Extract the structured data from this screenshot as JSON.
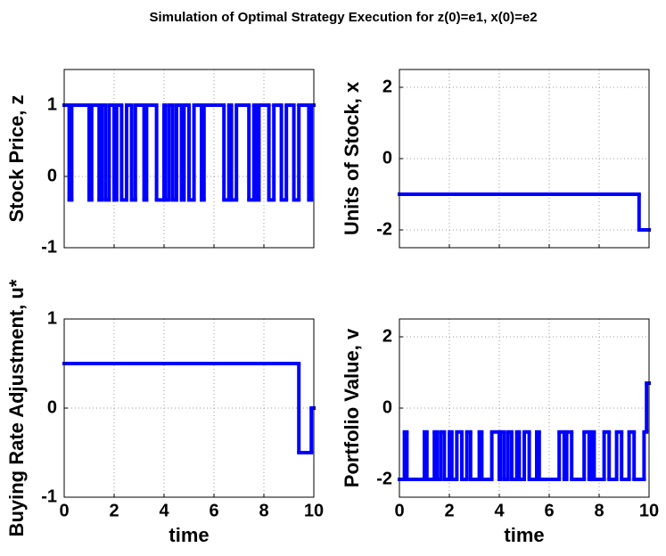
{
  "title": "Simulation of Optimal Strategy Execution for z(0)=e1, x(0)=e2",
  "chart_data": [
    {
      "type": "line",
      "drawstyle": "steps-post",
      "ylabel": "Stock Price, z",
      "xtick_labels_shown": false,
      "xlim": [
        0,
        10
      ],
      "xticks": [
        0,
        2,
        4,
        6,
        8,
        10
      ],
      "ylim": [
        -1,
        1.5
      ],
      "yticks": [
        -1,
        0,
        1
      ],
      "grid": true,
      "series": [
        {
          "color": "#0000ff",
          "x": [
            0,
            0.2,
            0.3,
            1.0,
            1.1,
            1.4,
            1.5,
            1.65,
            1.8,
            2.0,
            2.1,
            2.3,
            2.5,
            2.7,
            2.85,
            3.2,
            3.3,
            3.7,
            4.0,
            4.05,
            4.2,
            4.35,
            4.5,
            4.7,
            4.8,
            5.0,
            5.2,
            5.5,
            5.6,
            6.4,
            6.6,
            6.7,
            6.9,
            7.4,
            7.6,
            7.7,
            7.8,
            8.2,
            8.4,
            8.7,
            8.9,
            9.2,
            9.4,
            9.8,
            9.9
          ],
          "values": [
            1,
            -0.33,
            1,
            -0.33,
            1,
            -0.33,
            1,
            -0.33,
            1,
            -0.33,
            1,
            -0.33,
            1,
            -0.33,
            1,
            -0.33,
            1,
            -0.33,
            1,
            -0.33,
            1,
            -0.33,
            1,
            -0.33,
            1,
            -0.33,
            1,
            -0.33,
            1,
            -0.33,
            1,
            -0.33,
            1,
            -0.33,
            1,
            -0.33,
            1,
            -0.33,
            1,
            -0.33,
            1,
            -0.33,
            1,
            -0.33,
            1
          ]
        }
      ]
    },
    {
      "type": "line",
      "drawstyle": "steps-post",
      "ylabel": "Units of Stock, x",
      "xtick_labels_shown": false,
      "xlim": [
        0,
        10
      ],
      "xticks": [
        0,
        2,
        4,
        6,
        8,
        10
      ],
      "ylim": [
        -2.5,
        2.5
      ],
      "yticks": [
        -2,
        0,
        2
      ],
      "grid": true,
      "series": [
        {
          "color": "#0000ff",
          "x": [
            0,
            9.6
          ],
          "values": [
            -1,
            -2
          ]
        }
      ]
    },
    {
      "type": "line",
      "drawstyle": "steps-post",
      "ylabel": "Buying Rate Adjustment, u*",
      "xlabel": "time",
      "xtick_labels_shown": true,
      "xlim": [
        0,
        10
      ],
      "xticks": [
        0,
        2,
        4,
        6,
        8,
        10
      ],
      "ylim": [
        -1,
        1
      ],
      "yticks": [
        -1,
        0,
        1
      ],
      "grid": true,
      "series": [
        {
          "color": "#0000ff",
          "x": [
            0,
            9.4,
            9.9
          ],
          "values": [
            0.5,
            -0.5,
            0
          ]
        }
      ]
    },
    {
      "type": "line",
      "drawstyle": "steps-post",
      "ylabel": "Portfolio Value, v",
      "xlabel": "time",
      "xtick_labels_shown": true,
      "xlim": [
        0,
        10
      ],
      "xticks": [
        0,
        2,
        4,
        6,
        8,
        10
      ],
      "ylim": [
        -2.5,
        2.5
      ],
      "yticks": [
        -2,
        0,
        2
      ],
      "grid": true,
      "series": [
        {
          "color": "#0000ff",
          "x": [
            0,
            0.2,
            0.3,
            1.0,
            1.1,
            1.4,
            1.5,
            1.65,
            1.8,
            2.0,
            2.1,
            2.3,
            2.5,
            2.7,
            2.85,
            3.2,
            3.3,
            3.7,
            4.0,
            4.05,
            4.2,
            4.35,
            4.5,
            4.7,
            4.8,
            5.0,
            5.2,
            5.5,
            5.6,
            6.4,
            6.6,
            6.7,
            6.9,
            7.4,
            7.6,
            7.7,
            7.8,
            8.2,
            8.4,
            8.7,
            8.9,
            9.2,
            9.4,
            9.8,
            9.9
          ],
          "values": [
            -2,
            -0.67,
            -2,
            -0.67,
            -2,
            -0.67,
            -2,
            -0.67,
            -2,
            -0.67,
            -2,
            -0.67,
            -2,
            -0.67,
            -2,
            -0.67,
            -2,
            -0.67,
            -2,
            -0.67,
            -2,
            -0.67,
            -2,
            -0.67,
            -2,
            -0.67,
            -2,
            -0.67,
            -2,
            -0.67,
            -2,
            -0.67,
            -2,
            -0.67,
            -2,
            -0.67,
            -2,
            -0.67,
            -2,
            -0.67,
            -2,
            -0.67,
            -2,
            -0.67,
            0.7
          ]
        }
      ]
    }
  ]
}
